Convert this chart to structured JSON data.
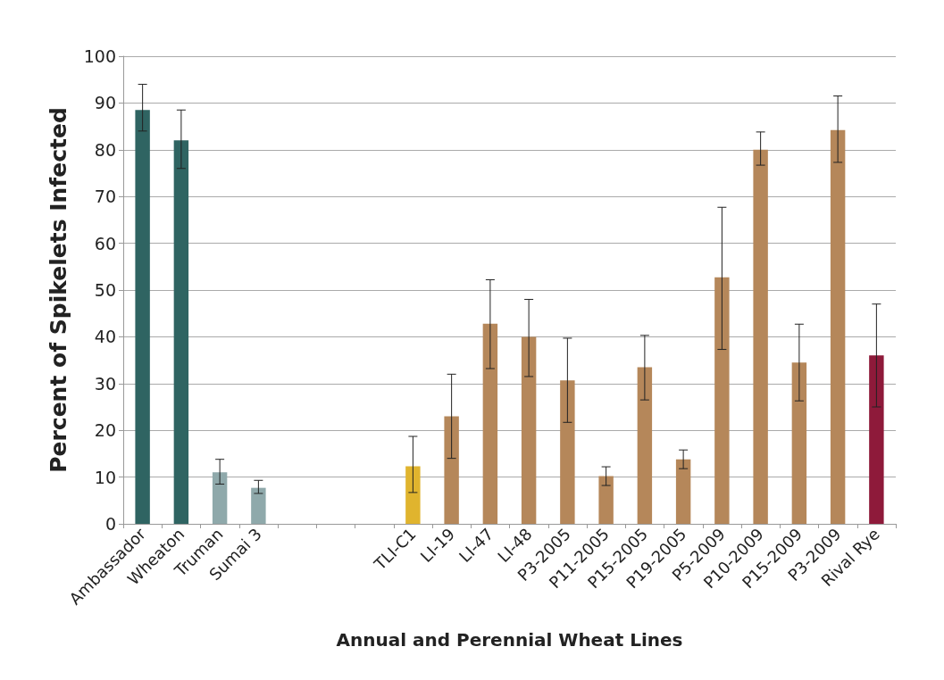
{
  "chart_data": {
    "type": "bar",
    "xlabel": "Annual and Perennial Wheat Lines",
    "ylabel": "Percent of Spikelets Infected",
    "categories": [
      "Ambassador",
      "Wheaton",
      "Truman",
      "Sumai 3",
      null,
      null,
      null,
      "TLI-C1",
      "LI-19",
      "LI-47",
      "LI-48",
      "P3-2005",
      "P11-2005",
      "P15-2005",
      "P19-2005",
      "P5-2009",
      "P10-2009",
      "P15-2009",
      "P3-2009",
      "Rival Rye"
    ],
    "values": [
      88.5,
      82,
      11,
      7.7,
      null,
      null,
      null,
      12.3,
      23,
      42.8,
      40,
      30.7,
      10.2,
      33.5,
      13.8,
      52.7,
      80,
      34.5,
      84.2,
      36
    ],
    "errors": [
      [
        84,
        94
      ],
      [
        76,
        88.5
      ],
      [
        8.5,
        13.8
      ],
      [
        6.5,
        9.3
      ],
      null,
      null,
      null,
      [
        6.7,
        18.7
      ],
      [
        14,
        32
      ],
      [
        33.2,
        52.2
      ],
      [
        31.5,
        48
      ],
      [
        21.7,
        39.7
      ],
      [
        8.2,
        12.2
      ],
      [
        26.5,
        40.3
      ],
      [
        11.8,
        15.8
      ],
      [
        37.3,
        67.7
      ],
      [
        76.7,
        83.8
      ],
      [
        26.3,
        42.7
      ],
      [
        77.3,
        91.5
      ],
      [
        25,
        47
      ]
    ],
    "colors": [
      "#2f6462",
      "#2f6462",
      "#8fa9ab",
      "#8fa9ab",
      null,
      null,
      null,
      "#e0b42e",
      "#b5875a",
      "#b5875a",
      "#b5875a",
      "#b5875a",
      "#b5875a",
      "#b5875a",
      "#b5875a",
      "#b5875a",
      "#b5875a",
      "#b5875a",
      "#b5875a",
      "#8e1a3a"
    ],
    "ylim": [
      0,
      100
    ],
    "yticks": [
      0,
      10,
      20,
      30,
      40,
      50,
      60,
      70,
      80,
      90,
      100
    ],
    "grid": "y"
  }
}
